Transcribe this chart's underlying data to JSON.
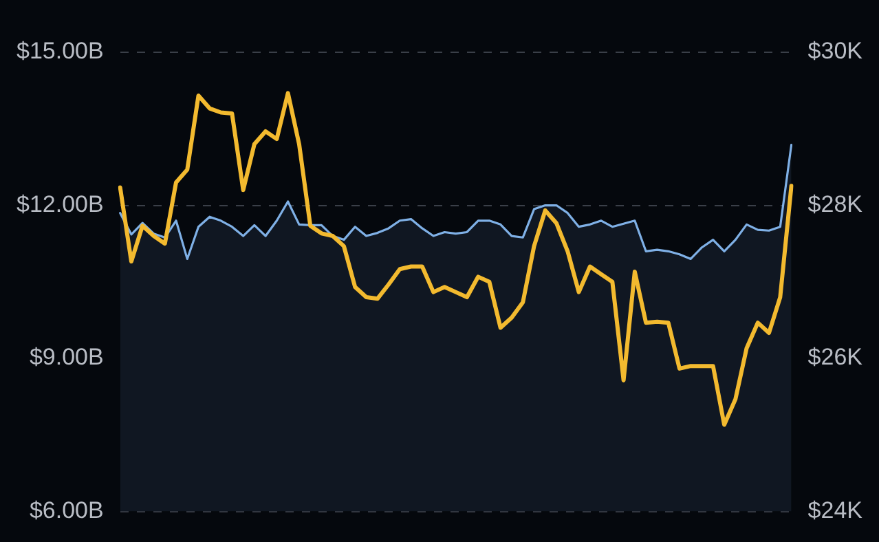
{
  "chart_data": {
    "type": "line",
    "categories": [
      null,
      null,
      null,
      null,
      null,
      null,
      null,
      null,
      null,
      null,
      null,
      null,
      null,
      null,
      null,
      null,
      null,
      null,
      null,
      null,
      null,
      null,
      null,
      null,
      null,
      null,
      null,
      null,
      null,
      null,
      null,
      null,
      null,
      null,
      null,
      null,
      null,
      null,
      null,
      null,
      null,
      null,
      null,
      null,
      null,
      null,
      null,
      null,
      null,
      null,
      null,
      null,
      null,
      null,
      null,
      null,
      null,
      null,
      null,
      null,
      null
    ],
    "ylim": [
      6,
      15
    ],
    "yticks": [
      {
        "value": 6,
        "label": "$6.00B"
      },
      {
        "value": 9,
        "label": "$9.00B"
      },
      {
        "value": 12,
        "label": "$12.00B"
      },
      {
        "value": 15,
        "label": "$15.00B"
      }
    ],
    "y2lim": [
      24,
      30
    ],
    "y2ticks": [
      {
        "value": 24,
        "label": "$24K"
      },
      {
        "value": 26,
        "label": "$26K"
      },
      {
        "value": 28,
        "label": "$28K"
      },
      {
        "value": 30,
        "label": "$30K"
      }
    ],
    "grid": "y",
    "marker": "none",
    "legend": false,
    "series": [
      {
        "axis": "y",
        "color": "#f3ba2f",
        "values": [
          12.35,
          10.9,
          11.6,
          11.4,
          11.25,
          12.45,
          12.7,
          14.15,
          13.9,
          13.82,
          13.8,
          12.3,
          13.2,
          13.45,
          13.3,
          14.2,
          13.2,
          11.6,
          11.45,
          11.4,
          11.2,
          10.4,
          10.2,
          10.17,
          10.45,
          10.75,
          10.8,
          10.8,
          10.3,
          10.4,
          10.3,
          10.2,
          10.6,
          10.5,
          9.6,
          9.8,
          10.1,
          11.2,
          11.9,
          11.65,
          11.1,
          10.3,
          10.8,
          10.65,
          10.5,
          8.57,
          10.7,
          9.7,
          9.72,
          9.7,
          8.8,
          8.85,
          8.85,
          8.85,
          7.7,
          8.2,
          9.2,
          9.7,
          9.5,
          10.2,
          12.38
        ]
      },
      {
        "type": "area",
        "axis": "y2",
        "color": "#7fb0e6",
        "values": [
          27.9,
          27.62,
          27.77,
          27.63,
          27.58,
          27.8,
          27.3,
          27.72,
          27.85,
          27.8,
          27.72,
          27.6,
          27.74,
          27.6,
          27.8,
          28.05,
          27.75,
          27.74,
          27.74,
          27.6,
          27.55,
          27.72,
          27.6,
          27.64,
          27.7,
          27.8,
          27.82,
          27.7,
          27.6,
          27.65,
          27.63,
          27.65,
          27.8,
          27.8,
          27.75,
          27.6,
          27.58,
          27.95,
          28,
          28,
          27.9,
          27.72,
          27.75,
          27.8,
          27.72,
          27.76,
          27.8,
          27.4,
          27.42,
          27.4,
          27.36,
          27.3,
          27.45,
          27.55,
          27.4,
          27.55,
          27.75,
          27.68,
          27.67,
          27.72,
          28.79
        ]
      }
    ]
  }
}
